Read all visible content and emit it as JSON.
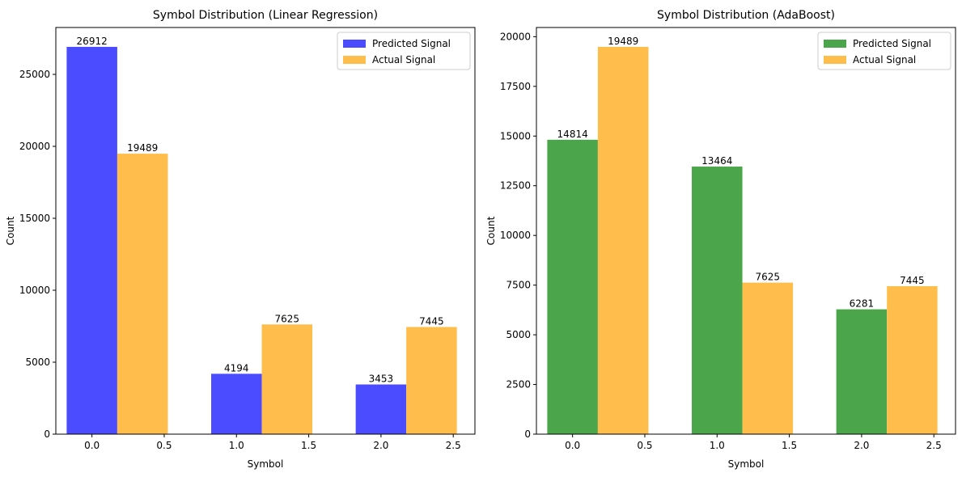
{
  "chart_data": [
    {
      "type": "bar",
      "title": "Symbol Distribution (Linear Regression)",
      "xlabel": "Symbol",
      "ylabel": "Count",
      "x_ticks": [
        0.0,
        0.5,
        1.0,
        1.5,
        2.0,
        2.5
      ],
      "x_tick_labels": [
        "0.0",
        "0.5",
        "1.0",
        "1.5",
        "2.0",
        "2.5"
      ],
      "y_ticks": [
        0,
        5000,
        10000,
        15000,
        20000,
        25000
      ],
      "y_tick_labels": [
        "0",
        "5000",
        "10000",
        "15000",
        "20000",
        "25000"
      ],
      "xlim": [
        -0.25,
        2.65
      ],
      "ylim": [
        0,
        28258
      ],
      "bar_width": 0.35,
      "legend_position": "top-right",
      "grid": false,
      "series": [
        {
          "name": "Predicted Signal",
          "color": "#4b4bff",
          "x": [
            0,
            1,
            2
          ],
          "values": [
            26912,
            4194,
            3453
          ],
          "labels": [
            "26912",
            "4194",
            "3453"
          ]
        },
        {
          "name": "Actual Signal",
          "color": "#ffbe4c",
          "x": [
            0.35,
            1.35,
            2.35
          ],
          "values": [
            19489,
            7625,
            7445
          ],
          "labels": [
            "19489",
            "7625",
            "7445"
          ]
        }
      ]
    },
    {
      "type": "bar",
      "title": "Symbol Distribution (AdaBoost)",
      "xlabel": "Symbol",
      "ylabel": "Count",
      "x_ticks": [
        0.0,
        0.5,
        1.0,
        1.5,
        2.0,
        2.5
      ],
      "x_tick_labels": [
        "0.0",
        "0.5",
        "1.0",
        "1.5",
        "2.0",
        "2.5"
      ],
      "y_ticks": [
        0,
        2500,
        5000,
        7500,
        10000,
        12500,
        15000,
        17500,
        20000
      ],
      "y_tick_labels": [
        "0",
        "2500",
        "5000",
        "7500",
        "10000",
        "12500",
        "15000",
        "17500",
        "20000"
      ],
      "xlim": [
        -0.25,
        2.65
      ],
      "ylim": [
        0,
        20463
      ],
      "bar_width": 0.35,
      "legend_position": "top-right",
      "grid": false,
      "series": [
        {
          "name": "Predicted Signal",
          "color": "#4ba64b",
          "x": [
            0,
            1,
            2
          ],
          "values": [
            14814,
            13464,
            6281
          ],
          "labels": [
            "14814",
            "13464",
            "6281"
          ]
        },
        {
          "name": "Actual Signal",
          "color": "#ffbe4c",
          "x": [
            0.35,
            1.35,
            2.35
          ],
          "values": [
            19489,
            7625,
            7445
          ],
          "labels": [
            "19489",
            "7625",
            "7445"
          ]
        }
      ]
    }
  ]
}
